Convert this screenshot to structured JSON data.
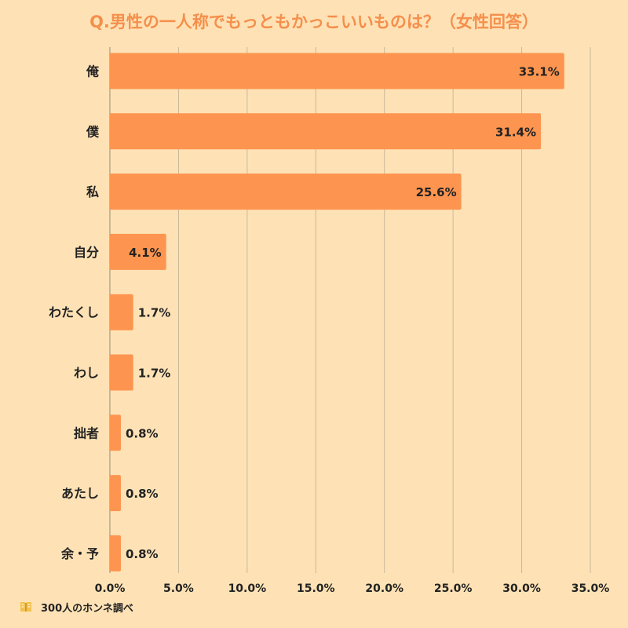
{
  "chart_data": {
    "type": "bar",
    "orientation": "horizontal",
    "title": "Q.男性の一人称でもっともかっこいいものは？（女性回答）",
    "categories": [
      "俺",
      "僕",
      "私",
      "自分",
      "わたくし",
      "わし",
      "拙者",
      "あたし",
      "余・予"
    ],
    "values": [
      33.1,
      31.4,
      25.6,
      4.1,
      1.7,
      1.7,
      0.8,
      0.8,
      0.8
    ],
    "value_labels": [
      "33.1%",
      "31.4%",
      "25.6%",
      "4.1%",
      "1.7%",
      "1.7%",
      "0.8%",
      "0.8%",
      "0.8%"
    ],
    "xlim": [
      0,
      35
    ],
    "x_ticks": [
      "0.0%",
      "5.0%",
      "10.0%",
      "15.0%",
      "20.0%",
      "25.0%",
      "30.0%",
      "35.0%"
    ],
    "x_tick_values": [
      0,
      5,
      10,
      15,
      20,
      25,
      30,
      35
    ],
    "grid": "vertical",
    "bar_color": "#fd9550",
    "title_color": "#f58f4c",
    "background_color": "#fee2b5",
    "gridline_color": "#c9b89a"
  },
  "footer": {
    "source": "300人のホンネ調べ",
    "logo_icon": "book-icon"
  }
}
